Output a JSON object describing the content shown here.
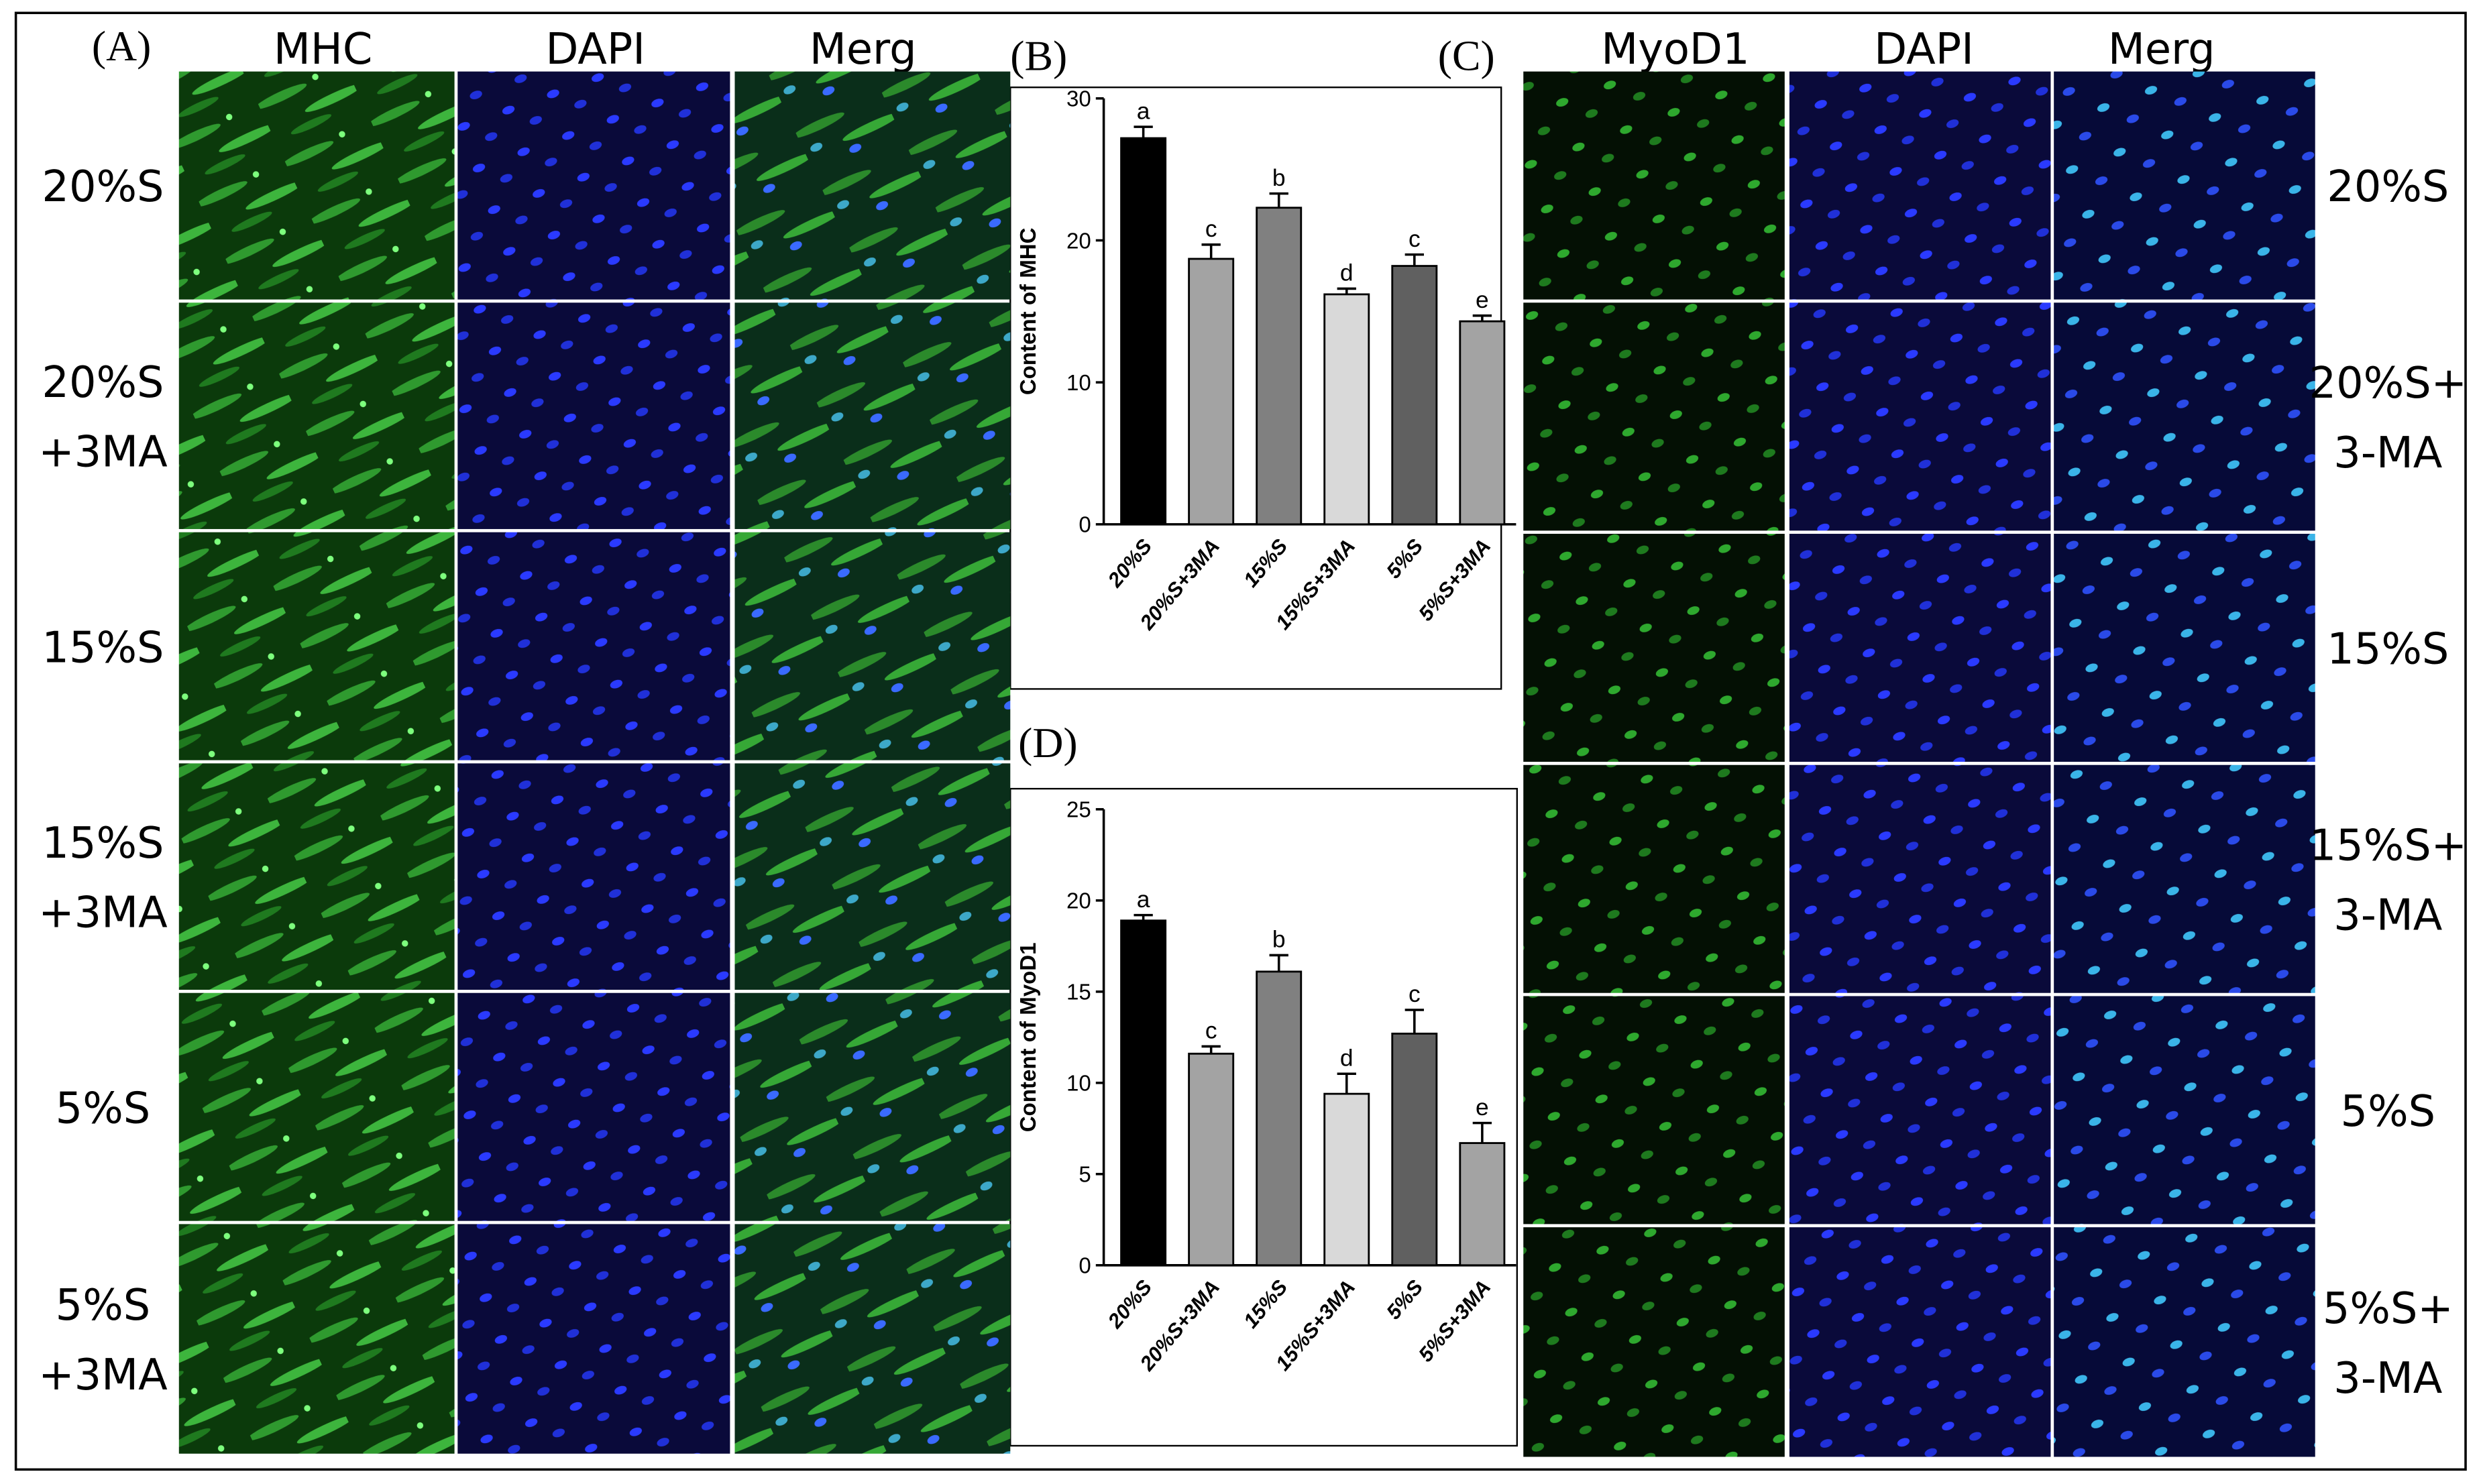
{
  "panel_labels": {
    "a": "(A)",
    "b": "(B)",
    "c": "(C)",
    "d": "(D)"
  },
  "left_panel": {
    "columns": [
      "MHC",
      "DAPI",
      "Merg"
    ],
    "rows": [
      [
        "20%S"
      ],
      [
        "20%S",
        "+3MA"
      ],
      [
        "15%S"
      ],
      [
        "15%S",
        "+3MA"
      ],
      [
        "5%S"
      ],
      [
        "5%S",
        "+3MA"
      ]
    ]
  },
  "right_panel": {
    "columns": [
      "MyoD1",
      "DAPI",
      "Merg"
    ],
    "rows": [
      [
        "20%S"
      ],
      [
        "20%S+",
        "3-MA"
      ],
      [
        "15%S"
      ],
      [
        "15%S+",
        "3-MA"
      ],
      [
        "5%S"
      ],
      [
        "5%S+",
        "3-MA"
      ]
    ]
  },
  "chart_data": [
    {
      "type": "bar",
      "y_label": "Content of MHC",
      "categories": [
        "20%S",
        "20%S+3MA",
        "15%S",
        "15%S+3MA",
        "5%S",
        "5%S+3MA"
      ],
      "values": [
        27.2,
        18.7,
        22.3,
        16.2,
        18.2,
        14.3
      ],
      "errors": [
        0.8,
        1.0,
        1.0,
        0.4,
        0.8,
        0.4
      ],
      "letters": [
        "a",
        "c",
        "b",
        "d",
        "c",
        "e"
      ],
      "colors": [
        "#000000",
        "#a3a3a3",
        "#808080",
        "#d9d9d9",
        "#606060",
        "#a3a3a3"
      ],
      "ylim": [
        0,
        30
      ],
      "yticks": [
        0,
        10,
        20,
        30
      ]
    },
    {
      "type": "bar",
      "y_label": "Content of MyoD1",
      "categories": [
        "20%S",
        "20%S+3MA",
        "15%S",
        "15%S+3MA",
        "5%S",
        "5%S+3MA"
      ],
      "values": [
        18.9,
        11.6,
        16.1,
        9.4,
        12.7,
        6.7
      ],
      "errors": [
        0.3,
        0.4,
        0.9,
        1.1,
        1.3,
        1.1
      ],
      "letters": [
        "a",
        "c",
        "b",
        "d",
        "c",
        "e"
      ],
      "colors": [
        "#000000",
        "#a3a3a3",
        "#808080",
        "#d9d9d9",
        "#606060",
        "#a3a3a3"
      ],
      "ylim": [
        0,
        25
      ],
      "yticks": [
        0,
        5,
        10,
        15,
        20,
        25
      ]
    }
  ]
}
